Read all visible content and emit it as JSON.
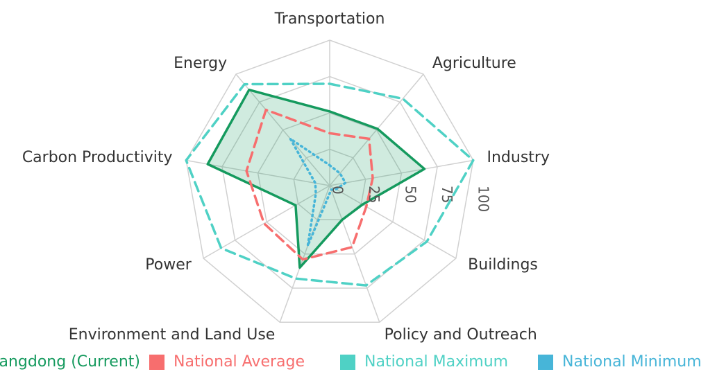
{
  "chart_data": {
    "type": "radar",
    "categories": [
      "Transportation",
      "Agriculture",
      "Industry",
      "Buildings",
      "Policy and Outreach",
      "Environment and Land Use",
      "Power",
      "Carbon Productivity",
      "Energy"
    ],
    "rlim": [
      0,
      100
    ],
    "rticks": [
      0,
      25,
      50,
      75,
      100
    ],
    "grid": true,
    "legend": "bottom",
    "series": [
      {
        "name": "Guangdong (Current)",
        "color": "#159a5e",
        "line_style": "solid",
        "fill": true,
        "values": [
          51,
          51,
          66,
          26,
          25,
          60,
          27,
          85,
          86
        ]
      },
      {
        "name": "National Average",
        "color": "#f76e6e",
        "line_style": "dash",
        "fill": false,
        "values": [
          36,
          42,
          30,
          29,
          45,
          54,
          52,
          58,
          68
        ]
      },
      {
        "name": "National Maximum",
        "color": "#4fd1c5",
        "line_style": "dash",
        "fill": false,
        "values": [
          70,
          78,
          100,
          77,
          73,
          68,
          86,
          100,
          91
        ]
      },
      {
        "name": "National Minimum",
        "color": "#47b5d8",
        "line_style": "dot",
        "fill": false,
        "values": [
          14,
          11,
          11,
          5,
          3,
          44,
          11,
          10,
          42
        ]
      }
    ]
  }
}
